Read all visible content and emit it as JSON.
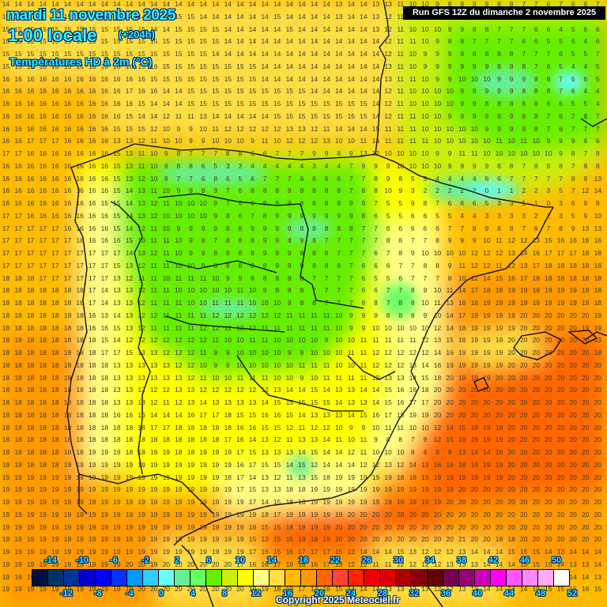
{
  "header": {
    "date": "mardi 11 novembre 2025",
    "time": "1:00 locale",
    "offset": "(+204h)",
    "variable": "Températures HD à 2m (°C)",
    "run": "Run GFS 12Z du dimanche 2 novembre 2025"
  },
  "footer": {
    "copyright": "Copyright 2025 Meteociel.fr"
  },
  "legend": {
    "unit": "°C",
    "top_labels": [
      "-14",
      "-10",
      "-6",
      "-2",
      "2",
      "6",
      "10",
      "14",
      "18",
      "22",
      "26",
      "30",
      "34",
      "38",
      "42",
      "46",
      "50"
    ],
    "bottom_labels": [
      "-12",
      "-8",
      "-4",
      "0",
      "4",
      "8",
      "12",
      "16",
      "20",
      "24",
      "28",
      "32",
      "36",
      "40",
      "44",
      "48",
      "52"
    ],
    "colors": [
      "#001040",
      "#003366",
      "#003399",
      "#0000cc",
      "#0000ff",
      "#0033ff",
      "#0099ff",
      "#33ccff",
      "#66ffff",
      "#66ee99",
      "#66ff66",
      "#66ee00",
      "#ccee11",
      "#ffff00",
      "#ffff88",
      "#ffdd44",
      "#ffbb00",
      "#ff9900",
      "#ff6600",
      "#ff4433",
      "#ff2200",
      "#ee0000",
      "#dd0000",
      "#aa0000",
      "#880000",
      "#660000",
      "#770055",
      "#990077",
      "#cc00bb",
      "#ff00ff",
      "#ff55ff",
      "#ff88ff",
      "#ffaaff",
      "#ffffff"
    ]
  },
  "map": {
    "region": "Iberian Peninsula",
    "grid_rows": [
      "14 14 14 14 14 14 14 14 14 14 14 14 14 14 14 14 14 14 14 14 14 14 14 14 14 14 14 13 14 14 13 13 11 10 10 9 8 8 9 9 8 8 7 7 6 7 6 6 7 6",
      "15 15 15 15 15 15 15 15 15 15 14 14 15 14 15 15 14 14 14 14 14 14 15 14 14 14 14 13 14 14 13 12 11 10 10 9 8 8 9 9 8 8 7 7 6 6 6 6 6 6",
      "15 15 15 15 15 15 15 15 15 15 15 15 14 14 15 15 15 15 14 14 14 14 14 15 14 14 14 14 14 14 13 12 11 10 10 10 9 9 8 8 7 7 7 6 6 4 5 6 6 6",
      "15 15 15 15 15 15 15 15 15 15 15 15 15 15 15 15 15 15 14 14 14 14 14 14 14 14 14 14 14 14 14 12 11 11 10 9 8 8 7 7 7 7 6 6 5 5 6 4 6 7",
      "15 15 15 15 15 15 15 15 15 15 15 15 15 15 15 15 15 14 14 14 14 14 14 14 14 14 14 14 14 14 14 12 11 10 9 9 9 9 8 8 8 8 7 7 7 6 5 5 7 6",
      "15 15 16 16 16 16 16 16 16 16 16 15 16 15 15 15 15 15 15 15 15 14 14 14 14 14 14 14 14 14 14 13 11 10 9 9 9 9 9 9 8 8 8 7 6 5 4 4 5 6",
      "16 16 16 16 16 16 16 16 16 16 16 16 15 15 15 15 15 15 15 15 15 14 14 14 14 14 14 14 14 14 14 13 11 11 10 9 9 10 10 10 9 9 9 8 8 7 6 6 5 4",
      "16 16 16 16 16 16 16 16 16 16 17 16 16 14 14 15 15 15 15 15 15 15 15 15 15 14 14 14 14 14 14 12 11 10 10 10 10 9 9 9 9 9 8 8 8 7 6 4 4 2",
      "16 16 16 16 16 16 16 16 16 16 16 15 14 14 14 15 15 15 15 15 15 15 15 15 15 15 15 15 15 15 14 12 11 10 10 10 10 9 9 8 8 8 8 8 6 6 5 5 4 3",
      "16 16 16 16 16 16 16 16 16 16 15 14 14 12 11 11 13 14 14 14 14 14 15 15 15 15 15 15 15 15 14 12 11 11 10 10 9 9 9 9 9 9 8 8 7 6 7 8 7 7",
      "16 16 16 16 16 16 16 16 16 15 15 15 12 10 9 9 10 11 12 12 12 12 12 13 13 12 11 14 14 14 15 11 11 11 10 10 10 10 10 9 9 9 9 8 7 6 7 7 7 7",
      "16 16 17 17 17 16 16 16 16 13 13 12 11 10 10 9 9 10 10 10 9 11 10 12 12 12 13 10 10 11 14 11 11 11 11 10 10 10 10 10 11 10 11 10 9 9 9 6 6 6",
      "17 17 16 16 16 16 16 16 16 15 13 11 10 9 8 7 7 7 8 8 6 6 7 7 7 9 9 8 9 13 12 10 10 10 10 9 9 11 11 10 10 10 10 10 10 9 8 7 8 9",
      "16 16 16 16 16 16 16 16 16 15 13 11 10 9 8 8 6 5 3 3 4 4 4 4 4 3 4 4 7 9 9 9 10 10 10 10 9 9 9 9 8 8 7 8 8 8 7 8 8 9",
      "16 16 16 16 16 16 16 16 16 15 13 12 10 8 7 7 6 8 6 5 6 7 7 7 6 6 6 6 7 7 8 9 8 5 5 4 4 4 4 6 6 7 7 7 7 7 8 8 13 14",
      "16 16 16 16 16 16 16 16 16 15 14 13 11 10 9 9 8 9 7 6 8 8 8 9 8 8 8 8 7 8 8 10 9 3 2 2 2 2 2 0 1 1 2 2 3 5 7 12 14 14",
      "16 16 16 16 16 16 16 16 15 15 14 13 12 11 10 10 10 9 7 5 6 8 9 9 8 8 8 8 9 9 7 5 5 9 8 7 6 6 6 5 3 3 1 1 0 3 6 9 9 14",
      "17 17 16 16 16 16 16 16 16 15 14 13 12 10 10 10 10 9 8 6 7 8 9 9 9 9 9 9 9 8 6 5 5 6 6 5 5 4 4 3 3 3 3 2 2 3 5 9 10 14",
      "17 17 17 17 17 16 16 16 16 15 14 12 11 10 9 9 9 9 8 8 9 9 9 9 8 8 8 8 8 7 7 6 6 6 6 6 7 7 8 9 8 8 7 6 7 8 9 13 13 15",
      "17 17 17 17 17 17 18 16 16 16 15 13 11 11 10 9 8 7 8 8 8 9 9 8 9 8 7 7 7 7 7 8 8 7 7 8 9 9 9 10 11 12 12 13 15 16 16 16 16 16",
      "17 17 17 17 17 17 17 17 17 17 14 13 12 11 10 9 9 8 8 8 8 9 9 9 8 8 8 7 7 7 6 7 8 9 10 10 10 10 12 12 12 13 14 16 17 17 17 18 18 18",
      "17 17 17 17 17 17 17 17 17 15 13 12 11 11 10 10 9 8 8 8 8 8 9 9 9 8 8 8 7 6 6 6 7 7 8 8 9 11 12 12 11 12 13 17 18 18 18 18 18 18",
      "18 18 18 17 17 17 17 17 17 13 12 11 11 10 11 11 11 10 9 9 8 8 8 8 8 7 7 7 7 6 5 5 6 7 7 7 8 10 12 14 15 16 17 18 18 18 18 18 18 18",
      "18 18 18 18 18 18 18 17 14 13 13 12 11 11 10 10 10 10 10 11 10 9 8 8 8 7 7 7 7 6 6 7 7 8 9 10 11 14 17 18 18 19 19 19 19 19 19 19 18 18",
      "18 18 18 18 18 18 18 17 14 13 13 12 11 11 11 10 10 11 11 11 10 10 10 9 8 8 7 7 7 8 8 7 8 8 10 11 13 16 18 19 19 19 19 19 19 19 19 19 18 18",
      "18 18 18 18 18 18 18 16 13 14 13 12 12 11 11 11 11 12 12 12 12 12 12 11 11 11 11 10 9 9 9 8 8 8 9 10 14 17 19 19 19 19 20 20 20 20 20 20 19 19",
      "18 18 18 18 18 18 18 16 16 15 13 12 11 11 11 11 12 12 12 12 12 11 11 11 11 11 11 10 9 9 10 10 10 10 10 12 14 18 19 19 19 19 20 20 20 20 20 19 19 15",
      "18 18 18 18 18 18 18 18 15 14 12 12 12 12 12 12 12 11 10 10 11 11 10 10 10 10 9 10 10 11 11 11 11 11 12 13 15 18 19 19 19 20 20 20 20 20 20 20 13 13",
      "18 18 18 18 18 18 18 18 17 17 15 13 13 12 12 12 11 9 9 10 10 10 10 9 9 10 10 10 11 11 12 12 12 12 12 14 16 19 19 19 19 20 20 20 20 20 20 20 18 15",
      "18 18 18 18 18 18 18 18 18 13 13 13 13 13 12 12 10 9 9 10 10 10 10 10 11 11 11 10 10 11 12 12 12 13 14 16 19 19 19 19 19 20 20 20 20 20 20 20 20 20",
      "18 18 18 18 18 18 18 18 18 13 13 13 13 13 13 12 11 10 10 11 11 11 10 10 9 10 11 11 11 11 12 13 13 14 15 18 20 19 19 19 20 20 20 20 20 20 20 20 20 20",
      "18 18 18 18 18 18 18 18 18 13 13 12 12 12 13 13 12 12 12 12 12 12 13 14 14 15 14 13 13 14 14 15 16 16 18 20 20 20 20 20 20 20 20 20 20 20 20 20 20 20",
      "18 18 18 18 18 18 18 18 18 13 13 13 12 11 12 13 14 13 13 13 13 14 15 15 15 15 15 14 13 13 14 15 16 17 17 20 20 20 20 20 20 20 20 20 20 20 20 20 20 20",
      "18 18 18 18 18 18 18 18 18 16 16 16 14 14 14 16 17 17 18 15 15 16 16 15 14 13 13 13 14 15 16 17 18 19 19 20 20 20 20 20 20 20 20 20 20 20 20 20 20 20",
      "18 18 18 18 18 18 18 18 18 18 18 18 17 17 18 18 18 18 18 16 16 15 15 12 11 12 12 10 9 9 10 11 11 10 10 12 14 15 18 19 19 20 20 20 20 20 20 20 20 20",
      "18 18 18 18 18 18 18 18 18 18 18 18 18 18 18 18 18 18 17 16 14 13 12 11 13 13 14 11 10 11 9 8 8 7 9 12 15 16 19 19 19 20 20 20 20 20 20 20 20 20",
      "18 18 18 18 18 18 18 19 19 19 18 18 19 19 18 18 19 19 19 17 15 13 13 13 14 15 14 14 12 11 10 10 10 8 4 8 9 13 14 14 18 20 20 20 20 20 20 20 20 20",
      "19 19 18 18 18 19 19 19 19 19 19 19 19 19 19 19 19 19 19 16 17 15 15 14 15 12 14 14 14 12 12 13 12 14 13 16 16 18 19 19 19 20 20 20 20 20 20 20 20 20",
      "19 19 19 19 19 19 19 19 19 19 19 19 19 19 19 19 19 19 18 17 14 13 12 11 13 15 18 19 19 19 19 19 18 18 19 19 19 19 19 19 19 20 20 20 20 20 20 20 20 20",
      "19 19 19 19 19 19 19 19 19 19 19 19 19 19 19 19 19 19 19 17 15 13 13 18 18 19 19 19 19 19 19 19 19 19 19 19 19 20 20 20 20 20 20 20 20 20 20 20 20 20",
      "19 19 19 19 19 19 19 19 19 19 19 19 19 19 19 19 19 19 19 19 17 14 15 18 18 19 19 19 19 19 19 19 19 19 19 19 20 20 20 20 20 20 20 20 20 20 20 20 20 20",
      "19 19 19 19 19 19 19 19 19 19 19 19 19 19 19 19 19 19 19 19 19 18 17 19 19 19 19 19 20 20 20 20 20 20 20 20 20 20 20 20 20 20 20 20 20 20 20 20 20 20",
      "19 19 19 19 19 19 19 19 19 19 19 19 19 19 19 19 19 19 19 19 18 15 15 18 19 19 19 20 20 20 20 20 20 20 20 20 20 20 20 20 20 20 20 20 20 20 20 20 20 20",
      "19 19 19 19 19 19 19 19 19 19 19 19 19 19 19 19 19 19 19 19 15 13 15 15 19 19 19 20 20 20 20 20 20 20 20 20 20 21 20 20 18 18 20 20 20 20 20 20 20 20",
      "19 19 19 19 19 19 19 19 19 19 19 19 19 19 19 19 19 19 19 19 17 16 15 16 17 17 17 15 13 14 14 14 15 13 12 12 12 13 14 14 14 15 15 15 14 13 14 14 14 15",
      "19 19 19 19 19 19 19 19 19 19 20 20 19 20 20 20 20 20 20 17 16 16 17 18 16 16 17 13 12 12 11 11 12 12 12 12 13 13 13 14 14 14 15 15 15 14 13 13 14 15",
      "19 19 19 19 19 19 19 19 19 19 19 20 20 20 20 20 20 20 20 20 20 20 19 19 18 17 18 16 15 16 15 14 13 13 12 12 12 13 12 12 13 14 14 14 14 15 14 14 13 13",
      "19 19 19 19 19 19 19 19 19 19 19 20 20 20 20 20 20 20 20 20 19 19 18 19 17 17 16 15 14 14 14 13 13 13 13 12 12 13 13 14 14 14 14 15 15 15 15 16 15 15"
    ]
  }
}
